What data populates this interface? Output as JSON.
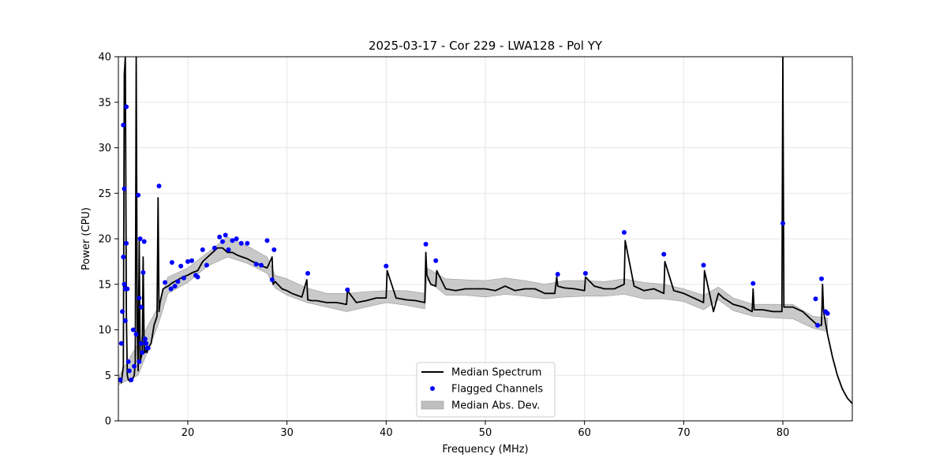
{
  "chart_data": {
    "type": "line",
    "title": "2025-03-17 - Cor 229 - LWA128 - Pol YY",
    "xlabel": "Frequency (MHz)",
    "ylabel": "Power (CPU)",
    "xlim": [
      13.0,
      87.0
    ],
    "ylim": [
      0,
      40
    ],
    "xticks": [
      20,
      30,
      40,
      50,
      60,
      70,
      80
    ],
    "yticks": [
      0,
      5,
      10,
      15,
      20,
      25,
      30,
      35,
      40
    ],
    "grid": true,
    "legend_position": "bottom-center",
    "legend": {
      "median": "Median Spectrum",
      "flagged": "Flagged Channels",
      "mad": "Median Abs. Dev."
    },
    "colors": {
      "median": "#000000",
      "flagged": "#0000ff",
      "mad": "#bfbfbf",
      "grid": "#e6e6e6"
    },
    "series": [
      {
        "name": "Median Spectrum",
        "x": [
          13.1,
          13.3,
          13.5,
          13.6,
          13.7,
          13.8,
          13.9,
          14.0,
          14.2,
          14.4,
          14.6,
          14.7,
          14.8,
          14.9,
          15.0,
          15.1,
          15.2,
          15.3,
          15.4,
          15.5,
          15.6,
          15.7,
          15.8,
          15.9,
          16.0,
          16.3,
          16.6,
          16.9,
          17.0,
          17.1,
          17.2,
          17.5,
          18.0,
          18.5,
          19.0,
          19.5,
          20.0,
          20.5,
          21.0,
          21.5,
          22.0,
          22.5,
          23.0,
          23.5,
          24.0,
          24.5,
          25.0,
          25.5,
          26.0,
          26.5,
          27.0,
          27.5,
          28.0,
          28.5,
          28.6,
          28.8,
          29.5,
          30.0,
          30.5,
          31.0,
          31.5,
          32.0,
          32.1,
          32.5,
          33.0,
          33.5,
          34.0,
          35.0,
          36.0,
          36.1,
          37.0,
          38.0,
          39.0,
          40.0,
          40.1,
          41.0,
          42.0,
          43.0,
          43.9,
          44.0,
          44.1,
          44.5,
          45.0,
          45.1,
          46.0,
          47.0,
          48.0,
          49.0,
          50.0,
          51.0,
          52.0,
          53.0,
          54.0,
          55.0,
          56.0,
          57.0,
          57.2,
          57.3,
          58.0,
          59.0,
          60.0,
          60.1,
          61.0,
          62.0,
          63.0,
          64.0,
          64.1,
          65.0,
          66.0,
          67.0,
          68.0,
          68.1,
          69.0,
          70.0,
          71.0,
          72.0,
          72.1,
          73.0,
          73.5,
          74.0,
          75.0,
          76.0,
          76.9,
          77.0,
          77.1,
          78.0,
          79.0,
          79.9,
          80.0,
          80.1,
          81.0,
          82.0,
          82.5,
          83.0,
          83.5,
          83.9,
          84.0,
          84.1,
          84.5,
          85.0,
          85.5,
          86.0,
          86.5,
          87.0
        ],
        "y": [
          4.5,
          4.2,
          6.0,
          38.0,
          40.0,
          12.0,
          5.0,
          4.5,
          4.3,
          4.5,
          5.0,
          6.5,
          40.0,
          10.0,
          5.5,
          20.0,
          6.5,
          7.0,
          7.5,
          18.0,
          7.5,
          7.5,
          8.0,
          7.5,
          8.0,
          8.5,
          10.5,
          11.5,
          24.5,
          12.0,
          13.0,
          14.5,
          14.8,
          15.2,
          15.5,
          15.8,
          16.0,
          16.3,
          16.5,
          17.5,
          18.0,
          18.5,
          19.0,
          19.0,
          18.5,
          18.5,
          18.2,
          18.0,
          17.8,
          17.5,
          17.3,
          17.0,
          16.8,
          18.0,
          15.0,
          15.3,
          14.5,
          14.3,
          14.0,
          13.8,
          13.6,
          15.5,
          13.3,
          13.2,
          13.2,
          13.1,
          13.0,
          13.0,
          12.8,
          14.3,
          13.0,
          13.2,
          13.5,
          13.5,
          16.5,
          13.5,
          13.3,
          13.2,
          13.0,
          18.5,
          16.0,
          15.0,
          14.8,
          16.5,
          14.5,
          14.3,
          14.5,
          14.5,
          14.5,
          14.3,
          14.8,
          14.3,
          14.5,
          14.5,
          14.0,
          14.0,
          15.8,
          14.8,
          14.6,
          14.5,
          14.3,
          15.8,
          14.8,
          14.5,
          14.5,
          15.0,
          19.8,
          14.8,
          14.3,
          14.5,
          14.0,
          17.5,
          14.3,
          14.0,
          13.5,
          13.0,
          16.5,
          12.0,
          14.0,
          13.5,
          12.8,
          12.5,
          12.0,
          14.5,
          12.2,
          12.2,
          12.0,
          12.0,
          40.0,
          12.5,
          12.5,
          12.0,
          11.5,
          11.0,
          10.5,
          10.5,
          15.0,
          12.0,
          9.5,
          7.0,
          5.0,
          3.5,
          2.5,
          1.9
        ]
      }
    ],
    "mad_band": {
      "x": [
        13.1,
        15.0,
        17.0,
        18.0,
        20.0,
        22.0,
        24.0,
        26.0,
        28.0,
        28.8,
        30.0,
        32.0,
        34.0,
        36.0,
        38.0,
        40.0,
        42.0,
        43.9,
        44.1,
        46.0,
        48.0,
        50.0,
        52.0,
        54.0,
        56.0,
        58.0,
        60.0,
        62.0,
        64.0,
        66.0,
        68.0,
        70.0,
        72.0,
        73.5,
        75.0,
        77.0,
        79.0,
        81.0,
        83.0,
        84.5
      ],
      "lower": [
        4.0,
        5.0,
        10.5,
        14.0,
        15.2,
        17.0,
        18.0,
        17.3,
        16.2,
        14.6,
        13.8,
        13.0,
        12.5,
        12.0,
        12.5,
        13.0,
        12.7,
        12.3,
        15.5,
        13.8,
        13.8,
        13.6,
        13.9,
        13.7,
        13.4,
        13.6,
        13.7,
        13.7,
        13.9,
        13.4,
        13.4,
        13.1,
        12.2,
        13.3,
        12.1,
        11.5,
        11.3,
        11.2,
        10.2,
        9.8
      ],
      "upper": [
        5.0,
        8.5,
        12.5,
        15.8,
        16.8,
        18.5,
        20.2,
        19.2,
        18.0,
        16.0,
        15.6,
        14.6,
        14.0,
        14.0,
        14.2,
        14.3,
        14.3,
        14.0,
        16.8,
        15.6,
        15.5,
        15.4,
        15.7,
        15.4,
        15.0,
        15.4,
        15.4,
        15.3,
        15.6,
        15.2,
        15.0,
        14.5,
        13.8,
        14.7,
        13.5,
        12.8,
        12.8,
        12.8,
        11.5,
        11.3
      ]
    },
    "flagged_points": {
      "x": [
        13.2,
        13.3,
        13.4,
        13.5,
        13.5,
        13.6,
        13.6,
        13.7,
        13.7,
        13.8,
        13.8,
        13.9,
        14.0,
        14.1,
        14.3,
        14.5,
        14.6,
        14.8,
        15.0,
        15.1,
        15.1,
        15.2,
        15.3,
        15.3,
        15.4,
        15.5,
        15.6,
        15.7,
        15.8,
        15.9,
        16.0,
        17.1,
        17.7,
        18.3,
        18.4,
        18.7,
        19.0,
        19.3,
        19.6,
        20.0,
        20.4,
        20.8,
        21.0,
        21.5,
        21.9,
        22.7,
        23.2,
        23.5,
        23.8,
        24.1,
        24.5,
        24.9,
        25.4,
        26.0,
        26.9,
        27.4,
        28.0,
        28.5,
        28.7,
        32.1,
        36.1,
        40.0,
        44.0,
        45.0,
        57.3,
        60.1,
        64.0,
        68.0,
        72.0,
        77.0,
        80.0,
        83.3,
        83.5,
        83.9,
        84.3,
        84.5
      ],
      "y": [
        4.5,
        8.5,
        12.0,
        32.5,
        18.0,
        15.0,
        25.5,
        11.0,
        14.5,
        19.5,
        34.5,
        14.5,
        6.5,
        5.5,
        4.5,
        10.0,
        6.0,
        9.5,
        24.8,
        13.5,
        6.5,
        20.0,
        8.5,
        12.5,
        7.5,
        16.3,
        19.7,
        9.0,
        8.5,
        8.0,
        8.0,
        25.8,
        15.2,
        14.5,
        17.4,
        14.8,
        15.3,
        17.0,
        15.7,
        17.5,
        17.6,
        16.0,
        15.8,
        18.8,
        17.1,
        19.0,
        20.2,
        19.7,
        20.4,
        18.8,
        19.8,
        20.0,
        19.5,
        19.5,
        17.2,
        17.1,
        19.8,
        15.5,
        18.8,
        16.2,
        14.4,
        17.0,
        19.4,
        17.6,
        16.1,
        16.2,
        20.7,
        18.3,
        17.1,
        15.1,
        21.7,
        13.4,
        10.5,
        15.6,
        12.0,
        11.8
      ]
    }
  }
}
